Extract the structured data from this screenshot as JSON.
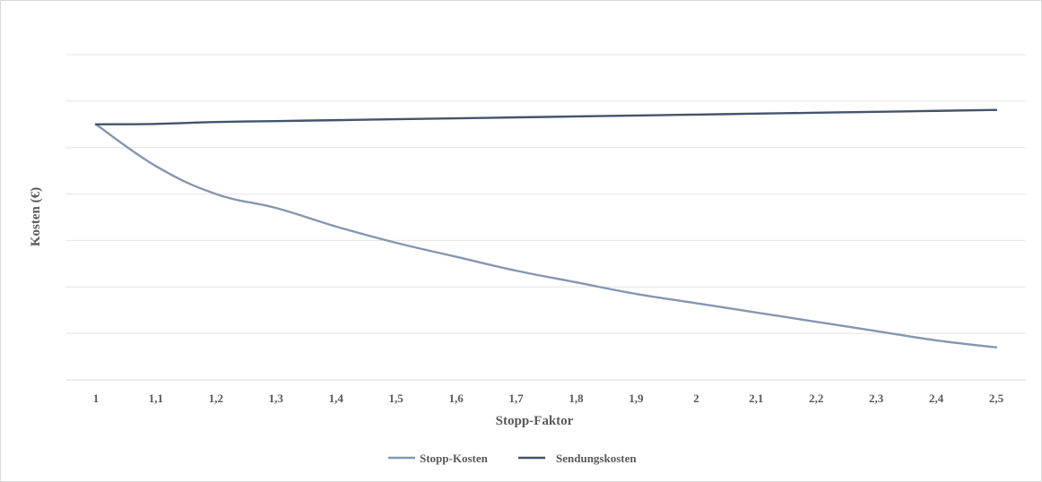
{
  "chart_data": {
    "type": "line",
    "title": "",
    "xlabel": "Stopp-Faktor",
    "ylabel": "Kosten (€)",
    "x": [
      "1",
      "1,1",
      "1,2",
      "1,3",
      "1,4",
      "1,5",
      "1,6",
      "1,7",
      "1,8",
      "1,9",
      "2",
      "2,1",
      "2,2",
      "2,3",
      "2,4",
      "2,5"
    ],
    "ylim": [
      0,
      7
    ],
    "y_tick_labels_visible": false,
    "grid": true,
    "legend_position": "bottom",
    "series": [
      {
        "name": "Stopp-Kosten",
        "color": "#8497b0",
        "values": [
          5.5,
          4.6,
          4.0,
          3.7,
          3.3,
          2.95,
          2.65,
          2.35,
          2.1,
          1.85,
          1.65,
          1.45,
          1.25,
          1.05,
          0.85,
          0.7
        ]
      },
      {
        "name": "Sendungskosten",
        "color": "#44546a",
        "values": [
          5.5,
          5.51,
          5.55,
          5.57,
          5.59,
          5.61,
          5.63,
          5.65,
          5.67,
          5.69,
          5.71,
          5.73,
          5.75,
          5.77,
          5.79,
          5.81
        ]
      }
    ]
  }
}
